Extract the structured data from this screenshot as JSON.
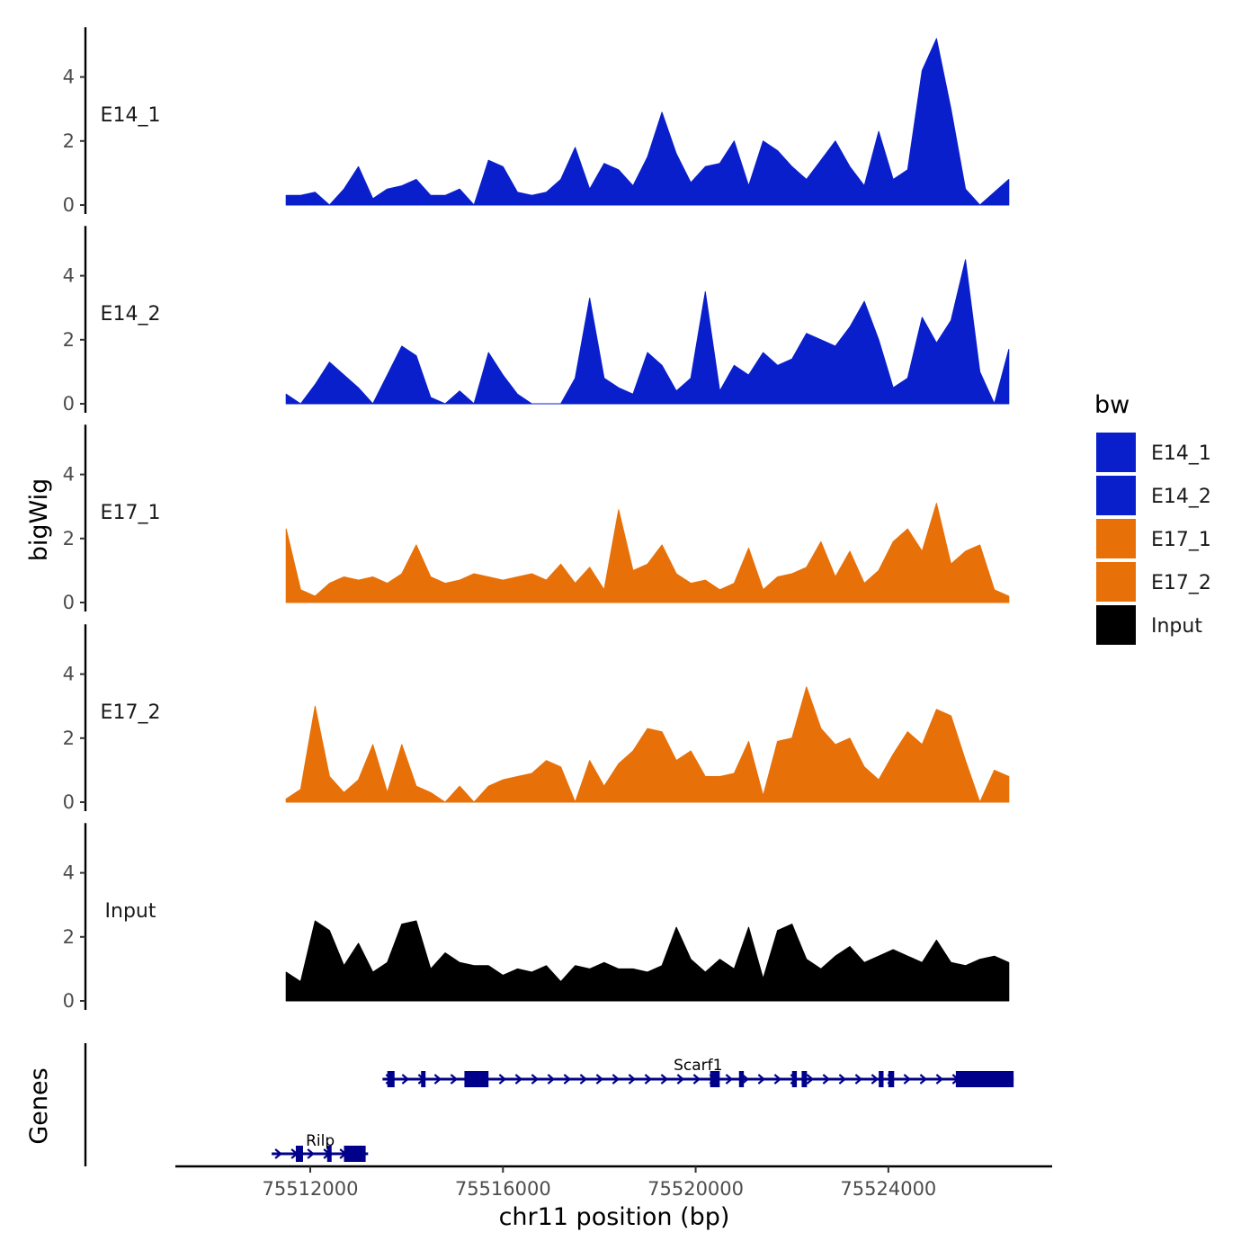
{
  "chart_data": {
    "type": "area",
    "chromosome": "chr11",
    "xlabel": "chr11 position (bp)",
    "ylabel": "bigWig",
    "genes_label": "Genes",
    "xlim": [
      75509200,
      75527400
    ],
    "x_ticks": [
      75512000,
      75516000,
      75520000,
      75524000
    ],
    "x_tick_labels": [
      "75512000",
      "75516000",
      "75520000",
      "75524000"
    ],
    "ylim": [
      0,
      5.5
    ],
    "y_ticks": [
      0,
      2,
      4
    ],
    "y_tick_labels": [
      "0",
      "2",
      "4"
    ],
    "legend": {
      "title": "bw",
      "entries": [
        {
          "label": "E14_1",
          "color": "#0a1fcc"
        },
        {
          "label": "E14_2",
          "color": "#0a1fcc"
        },
        {
          "label": "E17_1",
          "color": "#e87008"
        },
        {
          "label": "E17_2",
          "color": "#e87008"
        },
        {
          "label": "Input",
          "color": "#000000"
        }
      ]
    },
    "x": [
      75511500,
      75511800,
      75512100,
      75512400,
      75512700,
      75513000,
      75513300,
      75513600,
      75513900,
      75514200,
      75514500,
      75514800,
      75515100,
      75515400,
      75515700,
      75516000,
      75516300,
      75516600,
      75516900,
      75517200,
      75517500,
      75517800,
      75518100,
      75518400,
      75518700,
      75519000,
      75519300,
      75519600,
      75519900,
      75520200,
      75520500,
      75520800,
      75521100,
      75521400,
      75521700,
      75522000,
      75522300,
      75522600,
      75522900,
      75523200,
      75523500,
      75523800,
      75524100,
      75524400,
      75524700,
      75525000,
      75525300,
      75525600,
      75525900,
      75526200,
      75526500
    ],
    "series": [
      {
        "name": "E14_1",
        "color": "#0a1fcc",
        "values": [
          0.3,
          0.3,
          0.4,
          0.0,
          0.5,
          1.2,
          0.2,
          0.5,
          0.6,
          0.8,
          0.3,
          0.3,
          0.5,
          0.0,
          1.4,
          1.2,
          0.4,
          0.3,
          0.4,
          0.8,
          1.8,
          0.5,
          1.3,
          1.1,
          0.6,
          1.5,
          2.9,
          1.6,
          0.7,
          1.2,
          1.3,
          2.0,
          0.6,
          2.0,
          1.7,
          1.2,
          0.8,
          1.4,
          2.0,
          1.2,
          0.6,
          2.3,
          0.8,
          1.1,
          4.2,
          5.2,
          3.0,
          0.5,
          0.0,
          0.4,
          0.8
        ]
      },
      {
        "name": "E14_2",
        "color": "#0a1fcc",
        "values": [
          0.3,
          0.0,
          0.6,
          1.3,
          0.9,
          0.5,
          0.0,
          0.9,
          1.8,
          1.5,
          0.2,
          0.0,
          0.4,
          0.0,
          1.6,
          0.9,
          0.3,
          0.0,
          0.0,
          0.0,
          0.8,
          3.3,
          0.8,
          0.5,
          0.3,
          1.6,
          1.2,
          0.4,
          0.8,
          3.5,
          0.4,
          1.2,
          0.9,
          1.6,
          1.2,
          1.4,
          2.2,
          2.0,
          1.8,
          2.4,
          3.2,
          2.0,
          0.5,
          0.8,
          2.7,
          1.9,
          2.6,
          4.5,
          1.0,
          0.0,
          1.7
        ]
      },
      {
        "name": "E17_1",
        "color": "#e87008",
        "values": [
          2.3,
          0.4,
          0.2,
          0.6,
          0.8,
          0.7,
          0.8,
          0.6,
          0.9,
          1.8,
          0.8,
          0.6,
          0.7,
          0.9,
          0.8,
          0.7,
          0.8,
          0.9,
          0.7,
          1.2,
          0.6,
          1.1,
          0.4,
          2.9,
          1.0,
          1.2,
          1.8,
          0.9,
          0.6,
          0.7,
          0.4,
          0.6,
          1.7,
          0.4,
          0.8,
          0.9,
          1.1,
          1.9,
          0.8,
          1.6,
          0.6,
          1.0,
          1.9,
          2.3,
          1.6,
          3.1,
          1.2,
          1.6,
          1.8,
          0.4,
          0.2
        ]
      },
      {
        "name": "E17_2",
        "color": "#e87008",
        "values": [
          0.1,
          0.4,
          3.0,
          0.8,
          0.3,
          0.7,
          1.8,
          0.3,
          1.8,
          0.5,
          0.3,
          0.0,
          0.5,
          0.0,
          0.5,
          0.7,
          0.8,
          0.9,
          1.3,
          1.1,
          0.0,
          1.3,
          0.5,
          1.2,
          1.6,
          2.3,
          2.2,
          1.3,
          1.6,
          0.8,
          0.8,
          0.9,
          1.9,
          0.2,
          1.9,
          2.0,
          3.6,
          2.3,
          1.8,
          2.0,
          1.1,
          0.7,
          1.5,
          2.2,
          1.8,
          2.9,
          2.7,
          1.3,
          0.0,
          1.0,
          0.8
        ]
      },
      {
        "name": "Input",
        "color": "#000000",
        "values": [
          0.9,
          0.6,
          2.5,
          2.2,
          1.1,
          1.8,
          0.9,
          1.2,
          2.4,
          2.5,
          1.0,
          1.5,
          1.2,
          1.1,
          1.1,
          0.8,
          1.0,
          0.9,
          1.1,
          0.6,
          1.1,
          1.0,
          1.2,
          1.0,
          1.0,
          0.9,
          1.1,
          2.3,
          1.3,
          0.9,
          1.3,
          1.0,
          2.3,
          0.7,
          2.2,
          2.4,
          1.3,
          1.0,
          1.4,
          1.7,
          1.2,
          1.4,
          1.6,
          1.4,
          1.2,
          1.9,
          1.2,
          1.1,
          1.3,
          1.4,
          1.2
        ]
      }
    ],
    "genes": [
      {
        "name": "Scarf1",
        "strand": "+",
        "start": 75513500,
        "end": 75526600,
        "exons": [
          [
            75513600,
            75513750
          ],
          [
            75514300,
            75514380
          ],
          [
            75515200,
            75515700
          ],
          [
            75520300,
            75520500
          ],
          [
            75520900,
            75521000
          ],
          [
            75522000,
            75522100
          ],
          [
            75522200,
            75522310
          ],
          [
            75523800,
            75523900
          ],
          [
            75524000,
            75524120
          ],
          [
            75525400,
            75526600
          ]
        ]
      },
      {
        "name": "Rilp",
        "strand": "+",
        "start": 75511200,
        "end": 75513200,
        "exons": [
          [
            75511700,
            75511850
          ],
          [
            75512350,
            75512400
          ],
          [
            75512700,
            75513150
          ]
        ]
      }
    ]
  }
}
